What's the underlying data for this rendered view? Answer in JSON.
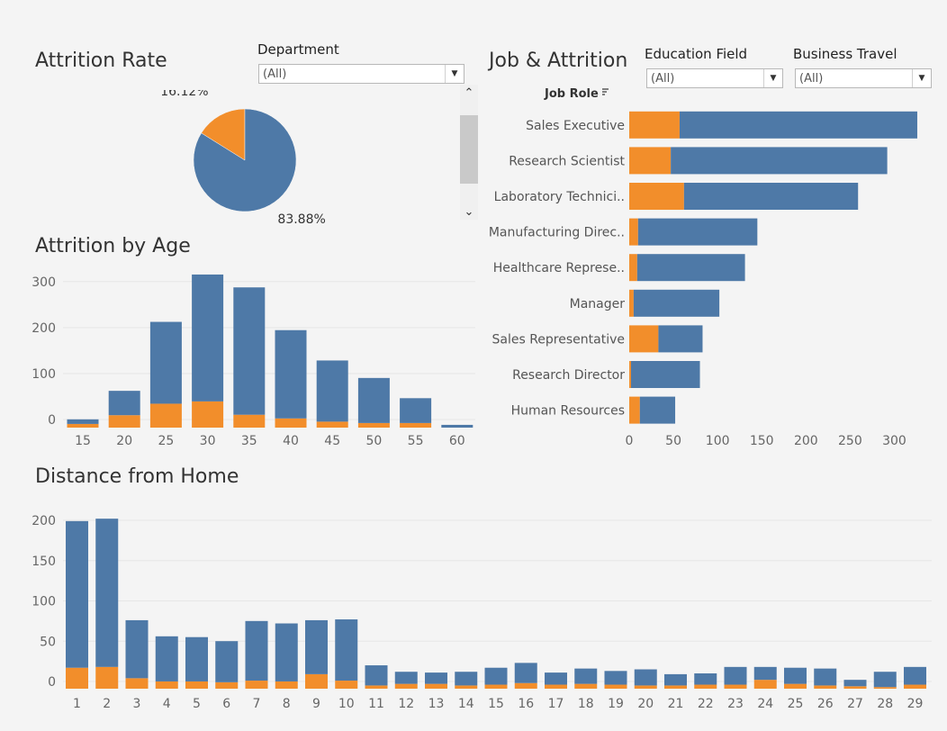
{
  "titles": {
    "attrition_rate": "Attrition Rate",
    "job_attrition": "Job & Attrition",
    "age": "Attrition by Age",
    "distance": "Distance from Home"
  },
  "filters": {
    "department": {
      "label": "Department",
      "value": "(All)"
    },
    "education_field": {
      "label": "Education Field",
      "value": "(All)"
    },
    "business_travel": {
      "label": "Business Travel",
      "value": "(All)"
    }
  },
  "icons": {
    "dropdown": "chevron-down-icon",
    "sort": "sort-icon",
    "scroll_up": "scroll-up-icon",
    "scroll_down": "scroll-down-icon"
  },
  "colors": {
    "stay": "#4e79a7",
    "leave": "#f28e2b",
    "background": "#f4f4f4"
  },
  "chart_data": [
    {
      "id": "attrition-rate",
      "type": "pie",
      "slices": [
        {
          "label": "16.12%",
          "value": 16.12,
          "color": "#f28e2b"
        },
        {
          "label": "83.88%",
          "value": 83.88,
          "color": "#4e79a7"
        }
      ]
    },
    {
      "id": "job-attrition",
      "type": "bar",
      "orientation": "horizontal",
      "stacked": true,
      "category_header": "Job Role",
      "categories": [
        "Sales Executive",
        "Research Scientist",
        "Laboratory Technici..",
        "Manufacturing Direc..",
        "Healthcare Represe..",
        "Manager",
        "Sales Representative",
        "Research Director",
        "Human Resources"
      ],
      "series": [
        {
          "color": "#f28e2b",
          "values": [
            57,
            47,
            62,
            10,
            9,
            5,
            33,
            2,
            12
          ]
        },
        {
          "color": "#4e79a7",
          "values": [
            269,
            245,
            197,
            135,
            122,
            97,
            50,
            78,
            40
          ]
        }
      ],
      "xlim": [
        0,
        330
      ],
      "xticks": [
        0,
        50,
        100,
        150,
        200,
        250,
        300
      ]
    },
    {
      "id": "attrition-by-age",
      "type": "bar",
      "stacked": true,
      "x": [
        15,
        20,
        25,
        30,
        35,
        40,
        45,
        50,
        55,
        60
      ],
      "series": [
        {
          "color": "#f28e2b",
          "values": [
            8,
            27,
            52,
            57,
            28,
            20,
            13,
            10,
            10,
            0
          ]
        },
        {
          "color": "#4e79a7",
          "values": [
            10,
            53,
            178,
            276,
            277,
            192,
            133,
            98,
            54,
            6
          ]
        }
      ],
      "ylim": [
        -18,
        330
      ],
      "yticks": [
        0,
        100,
        200,
        300
      ],
      "xticks": [
        15,
        20,
        25,
        30,
        35,
        40,
        45,
        50,
        55,
        60
      ]
    },
    {
      "id": "distance-from-home",
      "type": "bar",
      "stacked": true,
      "x": [
        1,
        2,
        3,
        4,
        5,
        6,
        7,
        8,
        9,
        10,
        11,
        12,
        13,
        14,
        15,
        16,
        17,
        18,
        19,
        20,
        21,
        22,
        23,
        24,
        25,
        26,
        27,
        28,
        29
      ],
      "series": [
        {
          "color": "#f28e2b",
          "values": [
            26,
            27,
            13,
            9,
            9,
            8,
            10,
            9,
            18,
            10,
            4,
            6,
            6,
            4,
            5,
            7,
            5,
            6,
            5,
            4,
            4,
            5,
            5,
            11,
            6,
            4,
            3,
            2,
            5
          ]
        },
        {
          "color": "#4e79a7",
          "values": [
            182,
            184,
            72,
            56,
            55,
            51,
            74,
            72,
            67,
            76,
            25,
            15,
            14,
            17,
            21,
            25,
            15,
            19,
            17,
            20,
            14,
            14,
            22,
            16,
            20,
            21,
            8,
            19,
            22
          ]
        }
      ],
      "ylim": [
        -10,
        210
      ],
      "yticks": [
        0,
        50,
        100,
        150,
        200
      ],
      "xticks": [
        1,
        2,
        3,
        4,
        5,
        6,
        7,
        8,
        9,
        10,
        11,
        12,
        13,
        14,
        15,
        16,
        17,
        18,
        19,
        20,
        21,
        22,
        23,
        24,
        25,
        26,
        27,
        28,
        29
      ]
    }
  ]
}
